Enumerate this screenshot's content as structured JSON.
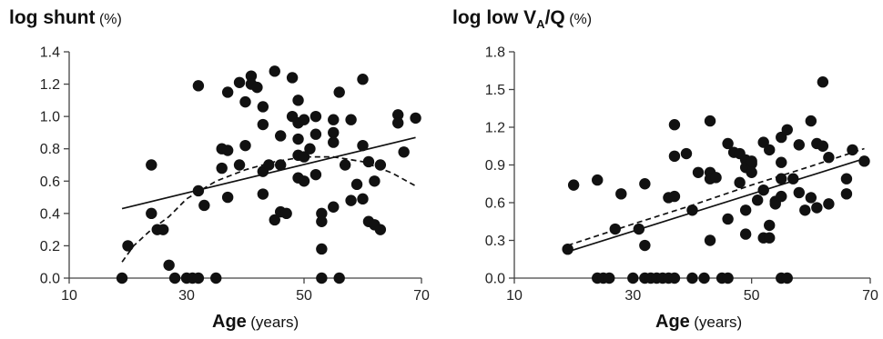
{
  "chart_data": [
    {
      "type": "scatter",
      "title": "log shunt",
      "title_unit": "(%)",
      "xlabel": "Age",
      "xlabel_unit": "(years)",
      "xlim": [
        10,
        70
      ],
      "ylim": [
        0,
        1.4
      ],
      "xticks": [
        "10",
        "30",
        "50",
        "70"
      ],
      "yticks": [
        "0.0",
        "0.2",
        "0.4",
        "0.6",
        "0.8",
        "1.0",
        "1.2",
        "1.4"
      ],
      "grid": false,
      "legend": "none",
      "points": [
        [
          19,
          0.0
        ],
        [
          20,
          0.2
        ],
        [
          24,
          0.7
        ],
        [
          24,
          0.4
        ],
        [
          25,
          0.3
        ],
        [
          26,
          0.3
        ],
        [
          27,
          0.08
        ],
        [
          28,
          0.0
        ],
        [
          30,
          0.0
        ],
        [
          31,
          0.0
        ],
        [
          32,
          0.0
        ],
        [
          32,
          1.19
        ],
        [
          33,
          0.45
        ],
        [
          32,
          0.54
        ],
        [
          35,
          0.0
        ],
        [
          36,
          0.8
        ],
        [
          36,
          0.68
        ],
        [
          37,
          0.5
        ],
        [
          37,
          0.79
        ],
        [
          37,
          1.15
        ],
        [
          39,
          1.21
        ],
        [
          39,
          0.7
        ],
        [
          40,
          1.09
        ],
        [
          40,
          0.82
        ],
        [
          41,
          1.25
        ],
        [
          41,
          1.2
        ],
        [
          42,
          1.18
        ],
        [
          43,
          1.06
        ],
        [
          43,
          0.95
        ],
        [
          43,
          0.66
        ],
        [
          43,
          0.52
        ],
        [
          44,
          0.7
        ],
        [
          45,
          1.28
        ],
        [
          45,
          0.36
        ],
        [
          46,
          0.88
        ],
        [
          46,
          0.7
        ],
        [
          46,
          0.41
        ],
        [
          47,
          0.4
        ],
        [
          48,
          1.24
        ],
        [
          48,
          1.0
        ],
        [
          49,
          1.1
        ],
        [
          49,
          0.96
        ],
        [
          49,
          0.86
        ],
        [
          49,
          0.76
        ],
        [
          49,
          0.62
        ],
        [
          50,
          0.6
        ],
        [
          50,
          0.75
        ],
        [
          50,
          0.98
        ],
        [
          51,
          0.8
        ],
        [
          52,
          1.0
        ],
        [
          52,
          0.89
        ],
        [
          52,
          0.64
        ],
        [
          53,
          0.4
        ],
        [
          53,
          0.35
        ],
        [
          53,
          0.18
        ],
        [
          53,
          0.0
        ],
        [
          55,
          0.98
        ],
        [
          55,
          0.9
        ],
        [
          55,
          0.84
        ],
        [
          56,
          1.15
        ],
        [
          56,
          0.0
        ],
        [
          55,
          0.44
        ],
        [
          57,
          0.7
        ],
        [
          58,
          0.98
        ],
        [
          58,
          0.48
        ],
        [
          59,
          0.58
        ],
        [
          60,
          1.23
        ],
        [
          60,
          0.82
        ],
        [
          60,
          0.49
        ],
        [
          61,
          0.72
        ],
        [
          61,
          0.35
        ],
        [
          62,
          0.6
        ],
        [
          62,
          0.33
        ],
        [
          63,
          0.3
        ],
        [
          63,
          0.7
        ],
        [
          66,
          1.01
        ],
        [
          66,
          0.96
        ],
        [
          67,
          0.78
        ],
        [
          69,
          0.99
        ]
      ],
      "linear_fit": {
        "x": [
          19,
          69
        ],
        "y": [
          0.43,
          0.87
        ]
      },
      "quadratic_fit": {
        "x": [
          19,
          21,
          24,
          27,
          30,
          35,
          40,
          45,
          50,
          55,
          60,
          65,
          69
        ],
        "y": [
          0.1,
          0.2,
          0.3,
          0.38,
          0.49,
          0.6,
          0.67,
          0.72,
          0.75,
          0.75,
          0.72,
          0.65,
          0.57
        ]
      }
    },
    {
      "type": "scatter",
      "title": "log low V",
      "title_sub": "A",
      "title_suffix": "/Q",
      "title_unit": "(%)",
      "xlabel": "Age",
      "xlabel_unit": "(years)",
      "xlim": [
        10,
        70
      ],
      "ylim": [
        0,
        1.8
      ],
      "xticks": [
        "10",
        "30",
        "50",
        "70"
      ],
      "yticks": [
        "0.0",
        "0.3",
        "0.6",
        "0.9",
        "1.2",
        "1.5",
        "1.8"
      ],
      "grid": false,
      "legend": "none",
      "points": [
        [
          19,
          0.23
        ],
        [
          20,
          0.74
        ],
        [
          24,
          0.78
        ],
        [
          24,
          0.0
        ],
        [
          25,
          0.0
        ],
        [
          26,
          0.0
        ],
        [
          27,
          0.39
        ],
        [
          28,
          0.67
        ],
        [
          30,
          0.0
        ],
        [
          31,
          0.39
        ],
        [
          32,
          0.75
        ],
        [
          32,
          0.26
        ],
        [
          32,
          0.0
        ],
        [
          33,
          0.0
        ],
        [
          34,
          0.0
        ],
        [
          35,
          0.0
        ],
        [
          36,
          0.0
        ],
        [
          36,
          0.64
        ],
        [
          37,
          0.0
        ],
        [
          37,
          1.22
        ],
        [
          37,
          0.97
        ],
        [
          37,
          0.65
        ],
        [
          39,
          0.99
        ],
        [
          40,
          0.0
        ],
        [
          40,
          0.54
        ],
        [
          41,
          0.84
        ],
        [
          42,
          0.0
        ],
        [
          43,
          1.25
        ],
        [
          43,
          0.84
        ],
        [
          43,
          0.79
        ],
        [
          43,
          0.3
        ],
        [
          44,
          0.8
        ],
        [
          45,
          0.0
        ],
        [
          46,
          0.0
        ],
        [
          46,
          0.47
        ],
        [
          46,
          1.07
        ],
        [
          47,
          1.0
        ],
        [
          48,
          0.99
        ],
        [
          48,
          0.76
        ],
        [
          49,
          0.94
        ],
        [
          49,
          0.88
        ],
        [
          49,
          0.35
        ],
        [
          49,
          0.54
        ],
        [
          50,
          0.91
        ],
        [
          50,
          0.93
        ],
        [
          50,
          0.84
        ],
        [
          51,
          0.62
        ],
        [
          52,
          1.08
        ],
        [
          52,
          0.32
        ],
        [
          52,
          0.7
        ],
        [
          53,
          1.02
        ],
        [
          53,
          0.42
        ],
        [
          53,
          0.32
        ],
        [
          54,
          0.61
        ],
        [
          54,
          0.59
        ],
        [
          55,
          1.12
        ],
        [
          55,
          0.92
        ],
        [
          55,
          0.79
        ],
        [
          55,
          0.65
        ],
        [
          55,
          0.0
        ],
        [
          56,
          1.18
        ],
        [
          56,
          0.0
        ],
        [
          57,
          0.79
        ],
        [
          58,
          1.06
        ],
        [
          58,
          0.68
        ],
        [
          59,
          0.54
        ],
        [
          60,
          1.25
        ],
        [
          60,
          0.64
        ],
        [
          61,
          1.07
        ],
        [
          61,
          0.56
        ],
        [
          62,
          1.56
        ],
        [
          62,
          1.05
        ],
        [
          63,
          0.96
        ],
        [
          63,
          0.59
        ],
        [
          66,
          0.79
        ],
        [
          66,
          0.67
        ],
        [
          67,
          1.02
        ],
        [
          69,
          0.93
        ]
      ],
      "linear_fit": {
        "x": [
          19,
          69
        ],
        "y": [
          0.21,
          0.95
        ]
      },
      "quadratic_fit": {
        "x": [
          19,
          30,
          40,
          50,
          60,
          69
        ],
        "y": [
          0.26,
          0.43,
          0.58,
          0.74,
          0.89,
          1.03
        ]
      }
    }
  ]
}
